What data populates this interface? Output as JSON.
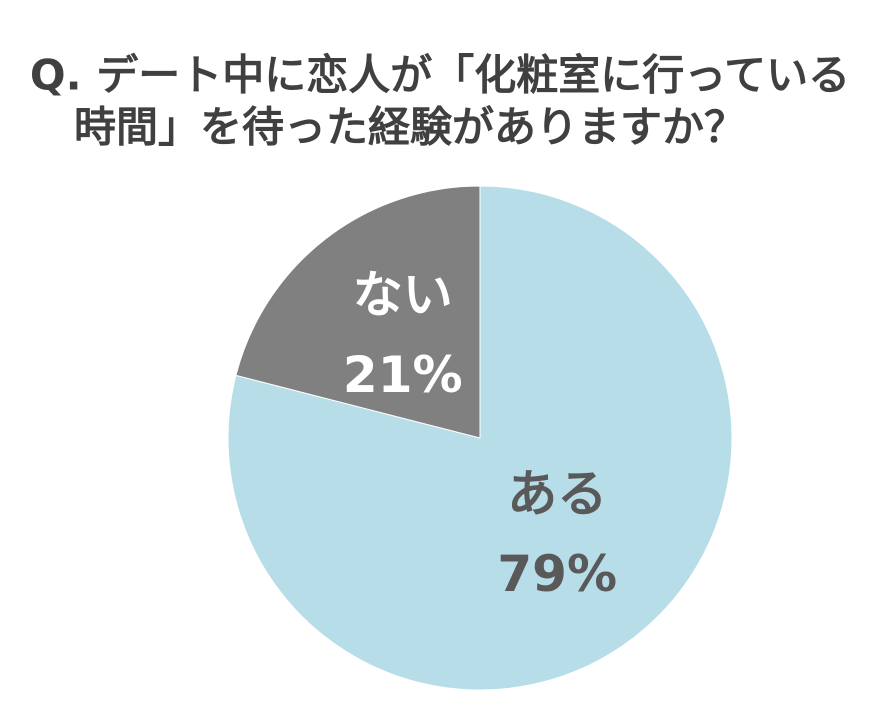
{
  "chart_data": {
    "type": "pie",
    "title": [
      "Q. デート中に恋人が「化粧室に行っている",
      "時間」を待った経験がありますか？"
    ],
    "categories": [
      "ある",
      "ない"
    ],
    "values": [
      79,
      21
    ],
    "value_labels": [
      "79%",
      "21%"
    ],
    "colors": [
      "#b7dde8",
      "#808080"
    ],
    "label_colors": [
      "#595959",
      "#ffffff"
    ]
  }
}
